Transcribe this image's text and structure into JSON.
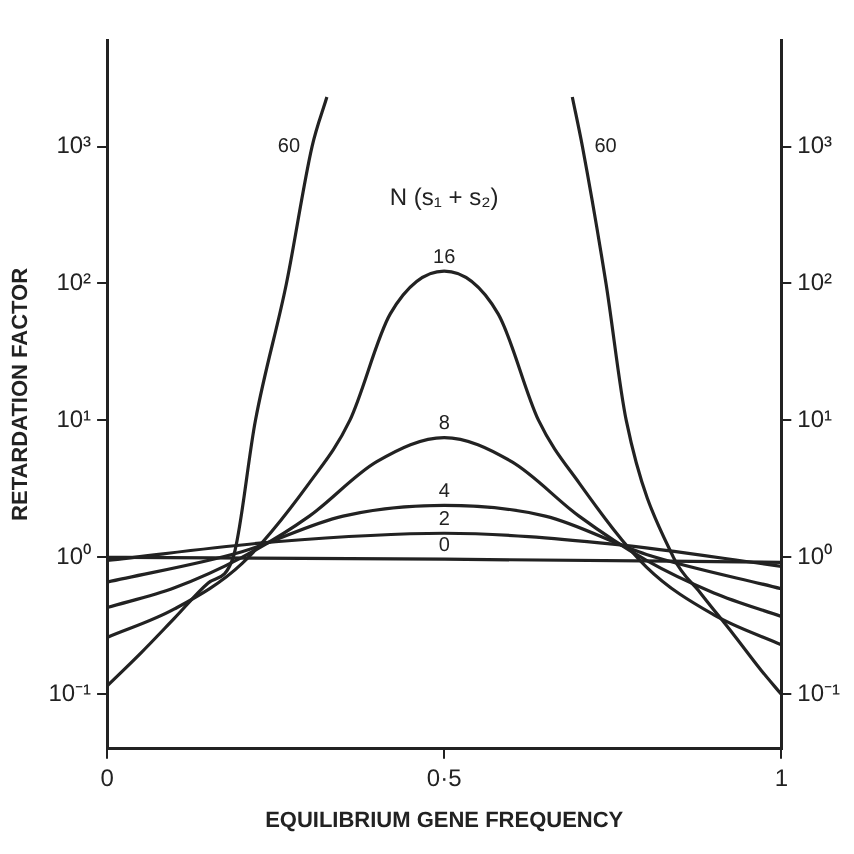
{
  "chart_data": {
    "type": "line",
    "xlabel": "EQUILIBRIUM GENE FREQUENCY",
    "ylabel": "RETARDATION FACTOR",
    "annotations": [
      "N (s₁ + s₂)"
    ],
    "xlim": [
      0,
      1
    ],
    "xticks": [
      0,
      {
        "value": 0.5,
        "label": "0·5"
      },
      1
    ],
    "ylim": [
      0.04,
      6000
    ],
    "yticks": [
      {
        "value": 0.1,
        "label": "10⁻¹"
      },
      {
        "value": 1,
        "label": "10⁰"
      },
      {
        "value": 10,
        "label": "10¹"
      },
      {
        "value": 100,
        "label": "10²"
      },
      {
        "value": 1000,
        "label": "10³"
      }
    ],
    "log": "y",
    "grid": false,
    "legend": false,
    "marker": "none",
    "line_style": "solid",
    "series": [
      {
        "name": "0",
        "color": "#222222",
        "x": [
          0,
          0.5,
          1
        ],
        "values": [
          1,
          0.97,
          0.92
        ]
      },
      {
        "name": "2",
        "color": "#222222",
        "x": [
          0,
          0.25,
          0.5,
          0.75,
          1
        ],
        "values": [
          0.95,
          1.3,
          1.5,
          1.25,
          0.86
        ]
      },
      {
        "name": "4",
        "color": "#222222",
        "x": [
          0,
          0.2,
          0.35,
          0.5,
          0.65,
          0.8,
          1
        ],
        "values": [
          0.66,
          1.1,
          2.0,
          2.4,
          2.0,
          1.05,
          0.59
        ]
      },
      {
        "name": "8",
        "color": "#222222",
        "x": [
          0,
          0.1,
          0.2,
          0.3,
          0.4,
          0.5,
          0.6,
          0.7,
          0.8,
          0.9,
          1
        ],
        "values": [
          0.43,
          0.6,
          1.0,
          2.0,
          5,
          7.5,
          5,
          2.0,
          0.95,
          0.55,
          0.37
        ]
      },
      {
        "name": "16",
        "color": "#222222",
        "x": [
          0,
          0.1,
          0.2,
          0.3,
          0.36,
          0.42,
          0.5,
          0.58,
          0.64,
          0.7,
          0.8,
          0.9,
          1
        ],
        "values": [
          0.26,
          0.42,
          0.9,
          3.5,
          10,
          60,
          123,
          60,
          10,
          3.5,
          0.85,
          0.38,
          0.23
        ]
      },
      {
        "name": "60",
        "color": "#222222",
        "x": [
          0,
          0.05,
          0.1,
          0.15,
          0.187,
          0.22,
          0.266,
          0.304,
          0.326,
          0.5,
          0.69,
          0.705,
          0.74,
          0.77,
          0.84,
          0.88,
          0.93,
          0.97,
          1
        ],
        "values": [
          0.115,
          0.2,
          0.36,
          0.65,
          1,
          10,
          100,
          1000,
          2300,
          null,
          2300,
          1000,
          100,
          10,
          1,
          0.55,
          0.27,
          0.15,
          0.1
        ]
      }
    ]
  }
}
